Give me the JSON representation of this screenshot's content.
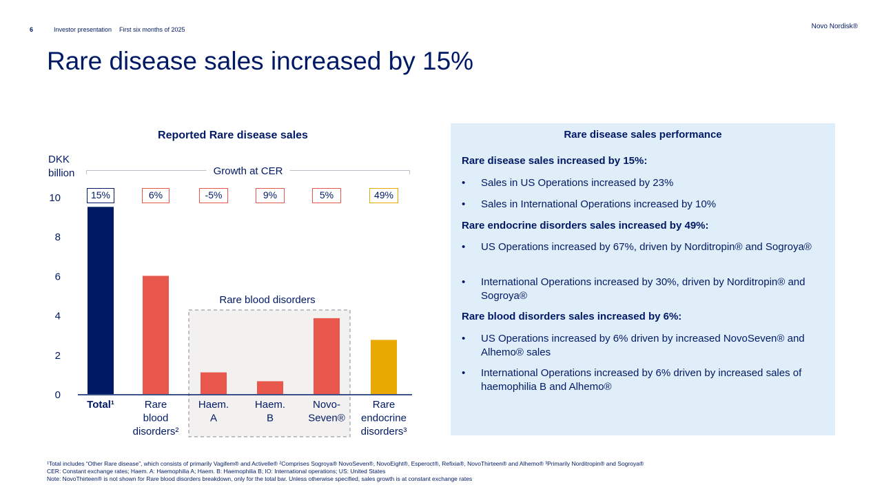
{
  "header": {
    "page_number": "6",
    "section": "Investor presentation",
    "period": "First six months of 2025",
    "brand": "Novo Nordisk®"
  },
  "title": "Rare disease sales increased by 15%",
  "chart_data": {
    "type": "bar",
    "title": "Reported Rare disease sales",
    "ylabel_line1": "DKK",
    "ylabel_line2": "billion",
    "ylim": [
      0,
      10
    ],
    "yticks": [
      "0",
      "2",
      "4",
      "6",
      "8",
      "10"
    ],
    "growth_header": "Growth at CER",
    "group_label": "Rare blood disorders",
    "categories": [
      {
        "name": "Total",
        "label_lines": [
          "Total¹"
        ],
        "value": 9.5,
        "growth": "15%",
        "color": "#001965",
        "bold": true
      },
      {
        "name": "Rare blood disorders",
        "label_lines": [
          "Rare",
          "blood",
          "disorders²"
        ],
        "value": 6.0,
        "growth": "6%",
        "color": "#e8574c",
        "bold": false
      },
      {
        "name": "Haem. A",
        "label_lines": [
          "Haem.",
          "A"
        ],
        "value": 1.1,
        "growth": "-5%",
        "color": "#e8574c",
        "bold": false
      },
      {
        "name": "Haem. B",
        "label_lines": [
          "Haem.",
          "B"
        ],
        "value": 0.65,
        "growth": "9%",
        "color": "#e8574c",
        "bold": false
      },
      {
        "name": "NovoSeven",
        "label_lines": [
          "Novo-",
          "Seven®"
        ],
        "value": 3.85,
        "growth": "5%",
        "color": "#e8574c",
        "bold": false
      },
      {
        "name": "Rare endocrine disorders",
        "label_lines": [
          "Rare",
          "endocrine",
          "disorders³"
        ],
        "value": 2.75,
        "growth": "49%",
        "color": "#e8a900",
        "bold": false
      }
    ]
  },
  "panel": {
    "title": "Rare disease sales performance",
    "sections": [
      {
        "heading": "Rare disease sales increased by 15%:",
        "bullets": [
          "Sales in US Operations increased by 23%",
          "Sales in International Operations increased by 10%"
        ]
      },
      {
        "heading": "Rare endocrine disorders sales increased by 49%:",
        "bullets": [
          "US Operations increased by 67%, driven by Norditropin® and Sogroya®",
          "International Operations increased by 30%, driven by Norditropin® and Sogroya®"
        ]
      },
      {
        "heading": "Rare blood disorders sales increased by 6%:",
        "bullets": [
          "US Operations increased by 6% driven by increased NovoSeven® and Alhemo® sales",
          "International Operations increased by 6% driven by increased sales of haemophilia B and Alhemo®"
        ]
      }
    ]
  },
  "footnotes": [
    "¹Total includes “Other Rare disease”, which consists of primarily Vagifem® and Activelle® ²Comprises Sogroya® NovoSeven®, NovoEight®, Esperoct®, Refixia®, NovoThirteen® and Alhemo® ³Primarily Norditropin® and Sogroya®",
    "CER: Constant exchange rates; Haem. A: Haemophilia A; Haem. B: Haemophilia B; IO: International operations; US: United States",
    "Note: NovoThirteen® is not shown for Rare blood disorders breakdown, only for the total bar. Unless otherwise specified, sales growth is at constant exchange rates"
  ],
  "colors": {
    "navy": "#001965",
    "red": "#e8574c",
    "gold": "#e8a900",
    "panel_bg": "#e0eef9"
  }
}
